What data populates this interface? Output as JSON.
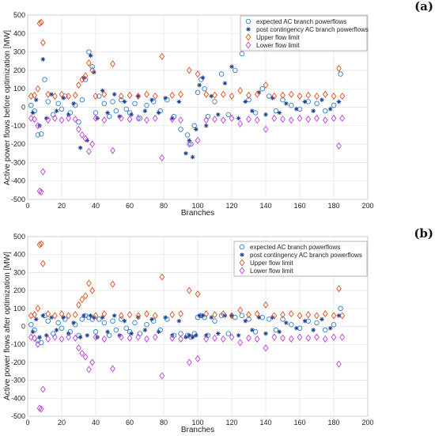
{
  "chart_data": [
    {
      "type": "scatter",
      "panel_label": "(a)",
      "title": "",
      "xlabel": "Branches",
      "ylabel": "Active power flows before optimization [MW]",
      "xlim": [
        0,
        200
      ],
      "ylim": [
        -500,
        500
      ],
      "xticks": [
        0,
        20,
        40,
        60,
        80,
        100,
        120,
        140,
        160,
        180,
        200
      ],
      "yticks": [
        -500,
        -400,
        -300,
        -200,
        -100,
        0,
        100,
        200,
        300,
        400,
        500
      ],
      "grid": true,
      "legend_position": "top-right",
      "series": [
        {
          "name": "expected AC branch powerflows",
          "marker": "circle",
          "color": "#2f7fd0",
          "x": [
            2,
            4,
            6,
            8,
            10,
            12,
            15,
            18,
            20,
            22,
            25,
            28,
            30,
            32,
            34,
            36,
            38,
            40,
            42,
            45,
            48,
            50,
            52,
            55,
            58,
            60,
            63,
            66,
            70,
            74,
            78,
            82,
            86,
            90,
            94,
            96,
            98,
            100,
            102,
            104,
            106,
            110,
            114,
            118,
            122,
            126,
            130,
            134,
            138,
            142,
            146,
            150,
            155,
            160,
            165,
            170,
            175,
            180,
            184
          ],
          "y": [
            10,
            -20,
            -150,
            -145,
            150,
            30,
            -40,
            20,
            -10,
            60,
            -30,
            10,
            -80,
            40,
            150,
            300,
            220,
            -30,
            60,
            20,
            -50,
            30,
            -20,
            40,
            -10,
            -30,
            20,
            -60,
            10,
            30,
            -20,
            40,
            -50,
            -120,
            -150,
            -200,
            -100,
            80,
            150,
            100,
            -50,
            30,
            180,
            -40,
            200,
            290,
            40,
            -30,
            100,
            60,
            -20,
            40,
            10,
            -10,
            30,
            20,
            -20,
            10,
            180
          ]
        },
        {
          "name": "post contingency AC branch powerflows",
          "marker": "star",
          "color": "#1f3f8f",
          "x": [
            3,
            5,
            7,
            9,
            11,
            14,
            17,
            21,
            24,
            27,
            31,
            33,
            35,
            37,
            39,
            41,
            44,
            47,
            51,
            54,
            57,
            61,
            65,
            69,
            73,
            77,
            81,
            85,
            89,
            93,
            95,
            97,
            99,
            101,
            103,
            105,
            108,
            112,
            116,
            120,
            124,
            128,
            132,
            136,
            140,
            144,
            148,
            152,
            158,
            163,
            168,
            173,
            178,
            183
          ],
          "y": [
            -30,
            40,
            -100,
            260,
            -60,
            70,
            -20,
            50,
            -40,
            20,
            -220,
            160,
            -180,
            280,
            190,
            -60,
            90,
            -30,
            70,
            -50,
            30,
            -40,
            60,
            -20,
            40,
            -30,
            50,
            -60,
            30,
            -250,
            -180,
            -270,
            -120,
            120,
            160,
            -100,
            60,
            -40,
            130,
            220,
            -60,
            30,
            -20,
            80,
            -40,
            50,
            -30,
            20,
            -10,
            30,
            -20,
            40,
            -10,
            30
          ]
        },
        {
          "name": "Upper flow limit",
          "marker": "diamond",
          "color": "#e05020",
          "x": [
            2,
            4,
            6,
            7,
            8,
            9,
            12,
            16,
            20,
            24,
            28,
            30,
            32,
            34,
            36,
            38,
            40,
            45,
            50,
            55,
            60,
            65,
            70,
            75,
            79,
            85,
            90,
            95,
            100,
            105,
            110,
            115,
            120,
            125,
            130,
            135,
            140,
            145,
            150,
            155,
            160,
            165,
            170,
            175,
            180,
            183,
            185
          ],
          "y": [
            60,
            65,
            100,
            455,
            460,
            350,
            70,
            60,
            70,
            60,
            65,
            120,
            150,
            170,
            240,
            200,
            60,
            70,
            235,
            60,
            65,
            60,
            70,
            60,
            275,
            65,
            70,
            200,
            180,
            70,
            65,
            70,
            60,
            90,
            65,
            70,
            120,
            60,
            65,
            70,
            60,
            65,
            60,
            70,
            60,
            210,
            60
          ]
        },
        {
          "name": "Lower flow limit",
          "marker": "diamond",
          "color": "#c040e0",
          "x": [
            2,
            4,
            6,
            7,
            8,
            9,
            12,
            16,
            20,
            24,
            28,
            30,
            32,
            34,
            36,
            38,
            40,
            45,
            50,
            55,
            60,
            65,
            70,
            75,
            79,
            85,
            90,
            95,
            100,
            105,
            110,
            115,
            120,
            125,
            130,
            135,
            140,
            145,
            150,
            155,
            160,
            165,
            170,
            175,
            180,
            183,
            185
          ],
          "y": [
            -60,
            -65,
            -100,
            -455,
            -460,
            -350,
            -70,
            -60,
            -70,
            -60,
            -65,
            -120,
            -150,
            -170,
            -240,
            -200,
            -60,
            -70,
            -235,
            -60,
            -65,
            -60,
            -70,
            -60,
            -275,
            -65,
            -70,
            -200,
            -180,
            -70,
            -65,
            -70,
            -60,
            -90,
            -65,
            -70,
            -120,
            -60,
            -65,
            -70,
            -60,
            -65,
            -60,
            -70,
            -60,
            -210,
            -60
          ]
        }
      ]
    },
    {
      "type": "scatter",
      "panel_label": "(b)",
      "title": "",
      "xlabel": "Branches",
      "ylabel": "Active power flows after optimization [MW]",
      "xlim": [
        0,
        200
      ],
      "ylim": [
        -500,
        500
      ],
      "xticks": [
        0,
        20,
        40,
        60,
        80,
        100,
        120,
        140,
        160,
        180,
        200
      ],
      "yticks": [
        -500,
        -400,
        -300,
        -200,
        -100,
        0,
        100,
        200,
        300,
        400,
        500
      ],
      "grid": true,
      "legend_position": "top-right",
      "series": [
        {
          "name": "expected AC branch powerflows",
          "marker": "circle",
          "color": "#2f7fd0",
          "x": [
            2,
            4,
            6,
            8,
            10,
            12,
            15,
            18,
            20,
            22,
            25,
            28,
            30,
            32,
            34,
            36,
            38,
            40,
            42,
            45,
            48,
            50,
            52,
            55,
            58,
            60,
            63,
            66,
            70,
            74,
            78,
            82,
            86,
            90,
            94,
            96,
            98,
            100,
            102,
            104,
            106,
            110,
            114,
            118,
            122,
            126,
            130,
            134,
            138,
            142,
            146,
            150,
            155,
            160,
            165,
            170,
            175,
            180,
            184
          ],
          "y": [
            10,
            -20,
            -80,
            -90,
            60,
            30,
            -40,
            20,
            -10,
            40,
            -30,
            10,
            -50,
            40,
            60,
            50,
            40,
            -30,
            40,
            20,
            -50,
            30,
            -20,
            40,
            -10,
            -30,
            20,
            -40,
            10,
            30,
            -20,
            40,
            -50,
            -40,
            -50,
            -60,
            -40,
            50,
            60,
            50,
            -50,
            30,
            60,
            -40,
            50,
            60,
            40,
            -30,
            50,
            40,
            -20,
            40,
            10,
            -10,
            30,
            20,
            -20,
            10,
            100
          ]
        },
        {
          "name": "post contingency AC branch powerflows",
          "marker": "star",
          "color": "#1f3f8f",
          "x": [
            3,
            5,
            7,
            9,
            11,
            14,
            17,
            21,
            24,
            27,
            31,
            33,
            35,
            37,
            39,
            41,
            44,
            47,
            51,
            54,
            57,
            61,
            65,
            69,
            73,
            77,
            81,
            85,
            89,
            93,
            95,
            97,
            99,
            101,
            103,
            105,
            108,
            112,
            116,
            120,
            124,
            128,
            132,
            136,
            140,
            144,
            148,
            152,
            158,
            163,
            168,
            173,
            178,
            183
          ],
          "y": [
            -30,
            40,
            -60,
            60,
            -50,
            50,
            -20,
            50,
            -40,
            20,
            -60,
            60,
            -50,
            60,
            50,
            -60,
            50,
            -30,
            60,
            -50,
            30,
            -40,
            50,
            -20,
            40,
            -30,
            50,
            -50,
            30,
            -60,
            -50,
            -60,
            -50,
            60,
            60,
            -50,
            50,
            -40,
            60,
            60,
            -50,
            30,
            -20,
            50,
            -40,
            50,
            -30,
            20,
            -10,
            30,
            -20,
            40,
            -10,
            60
          ]
        },
        {
          "name": "Upper flow limit",
          "marker": "diamond",
          "color": "#e05020",
          "x": [
            2,
            4,
            6,
            7,
            8,
            9,
            12,
            16,
            20,
            24,
            28,
            30,
            32,
            34,
            36,
            38,
            40,
            45,
            50,
            55,
            60,
            65,
            70,
            75,
            79,
            85,
            90,
            95,
            100,
            105,
            110,
            115,
            120,
            125,
            130,
            135,
            140,
            145,
            150,
            155,
            160,
            165,
            170,
            175,
            180,
            183,
            185
          ],
          "y": [
            60,
            65,
            100,
            455,
            460,
            350,
            70,
            60,
            70,
            60,
            65,
            120,
            150,
            170,
            240,
            200,
            60,
            70,
            235,
            60,
            65,
            60,
            70,
            60,
            275,
            65,
            70,
            200,
            180,
            70,
            65,
            70,
            60,
            90,
            65,
            70,
            120,
            60,
            65,
            70,
            60,
            65,
            60,
            70,
            60,
            210,
            60
          ]
        },
        {
          "name": "Lower flow limit",
          "marker": "diamond",
          "color": "#c040e0",
          "x": [
            2,
            4,
            6,
            7,
            8,
            9,
            12,
            16,
            20,
            24,
            28,
            30,
            32,
            34,
            36,
            38,
            40,
            45,
            50,
            55,
            60,
            65,
            70,
            75,
            79,
            85,
            90,
            95,
            100,
            105,
            110,
            115,
            120,
            125,
            130,
            135,
            140,
            145,
            150,
            155,
            160,
            165,
            170,
            175,
            180,
            183,
            185
          ],
          "y": [
            -60,
            -65,
            -100,
            -455,
            -460,
            -350,
            -70,
            -60,
            -70,
            -60,
            -65,
            -120,
            -150,
            -170,
            -240,
            -200,
            -60,
            -70,
            -235,
            -60,
            -65,
            -60,
            -70,
            -60,
            -275,
            -65,
            -70,
            -200,
            -180,
            -70,
            -65,
            -70,
            -60,
            -90,
            -65,
            -70,
            -120,
            -60,
            -65,
            -70,
            -60,
            -65,
            -60,
            -70,
            -60,
            -210,
            -60
          ]
        }
      ]
    }
  ]
}
